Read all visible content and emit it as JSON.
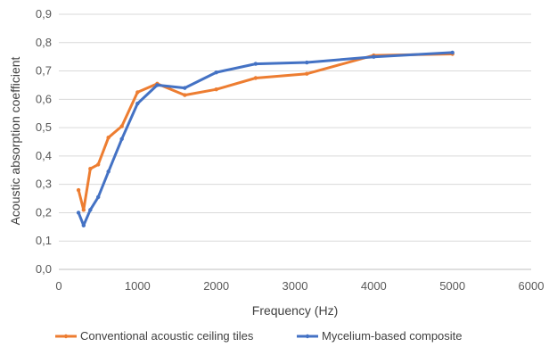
{
  "chart_data": {
    "type": "line",
    "xlabel": "Frequency (Hz)",
    "ylabel": "Acoustic absorption coefficient",
    "xlim": [
      0,
      6000
    ],
    "ylim": [
      0,
      0.9
    ],
    "x_ticks": [
      0,
      1000,
      2000,
      3000,
      4000,
      5000,
      6000
    ],
    "x_tick_labels": [
      "0",
      "1000",
      "2000",
      "3000",
      "4000",
      "5000",
      "6000"
    ],
    "y_ticks": [
      0,
      0.1,
      0.2,
      0.3,
      0.4,
      0.5,
      0.6,
      0.7,
      0.8,
      0.9
    ],
    "y_tick_labels": [
      "0,0",
      "0,1",
      "0,2",
      "0,3",
      "0,4",
      "0,5",
      "0,6",
      "0,7",
      "0,8",
      "0,9"
    ],
    "grid": "horizontal",
    "legend_position": "bottom",
    "series": [
      {
        "name": "Conventional acoustic ceiling tiles",
        "color": "#ED7D31",
        "x": [
          250,
          315,
          400,
          500,
          630,
          800,
          1000,
          1250,
          1600,
          2000,
          2500,
          3150,
          4000,
          5000
        ],
        "y": [
          0.28,
          0.21,
          0.355,
          0.37,
          0.465,
          0.505,
          0.625,
          0.655,
          0.615,
          0.635,
          0.675,
          0.69,
          0.755,
          0.76
        ]
      },
      {
        "name": "Mycelium-based composite",
        "color": "#4472C4",
        "x": [
          250,
          315,
          400,
          500,
          630,
          800,
          1000,
          1250,
          1600,
          2000,
          2500,
          3150,
          4000,
          5000
        ],
        "y": [
          0.2,
          0.155,
          0.21,
          0.255,
          0.345,
          0.46,
          0.585,
          0.65,
          0.64,
          0.695,
          0.725,
          0.73,
          0.75,
          0.765
        ]
      }
    ]
  }
}
